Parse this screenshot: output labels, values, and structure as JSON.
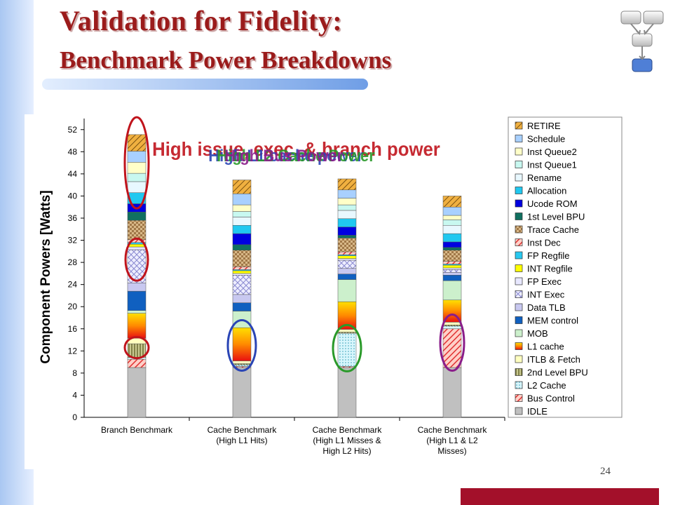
{
  "slide": {
    "title_line1": "Validation for Fidelity:",
    "title_line2": "Benchmark Power Breakdowns",
    "page_number": "24"
  },
  "annotations": {
    "overlap_labels": [
      "High issue, exec. & branch power",
      "High L1 cache power",
      "High L2 Cache Power",
      "High Bus Power"
    ],
    "colors": [
      "#c0141c",
      "#2a45b5",
      "#2a9a2a",
      "#8a1d8a"
    ]
  },
  "chart_data": {
    "type": "bar",
    "stacked": true,
    "ylabel": "Component Powers [Watts]",
    "xlabel": "",
    "ylim": [
      0,
      54
    ],
    "yticks": [
      0,
      4,
      8,
      12,
      16,
      20,
      24,
      28,
      32,
      36,
      40,
      44,
      48,
      52
    ],
    "grid": false,
    "legend_position": "right",
    "categories": [
      [
        "Branch Benchmark"
      ],
      [
        "Cache Benchmark",
        "(High L1 Hits)"
      ],
      [
        "Cache Benchmark",
        "(High L1 Misses &",
        "High L2 Hits)"
      ],
      [
        "Cache Benchmark",
        "(High L1 & L2",
        "Misses)"
      ]
    ],
    "series": [
      {
        "name": "IDLE",
        "color": "#c0c0c0",
        "pattern": "solid",
        "values": [
          9,
          9,
          9,
          9
        ]
      },
      {
        "name": "Bus Control",
        "color": "#f06060",
        "pattern": "diag",
        "values": [
          1.5,
          0.2,
          0.2,
          7
        ]
      },
      {
        "name": "L2 Cache",
        "color": "#c8f0f8",
        "pattern": "dots",
        "values": [
          0.3,
          0.3,
          6,
          0.5
        ]
      },
      {
        "name": "2nd Level BPU",
        "color": "#9c9c6a",
        "pattern": "vlines",
        "values": [
          2.5,
          0.2,
          0.2,
          0.2
        ]
      },
      {
        "name": "ITLB & Fetch",
        "color": "#ffffc0",
        "pattern": "solid",
        "values": [
          1,
          0.5,
          0.5,
          0.5
        ]
      },
      {
        "name": "L1 cache",
        "color": "#ff9a00",
        "pattern": "gradient",
        "values": [
          4.5,
          6,
          5,
          4
        ]
      },
      {
        "name": "MOB",
        "color": "#ccf0cc",
        "pattern": "solid",
        "values": [
          0.5,
          3,
          4,
          3.5
        ]
      },
      {
        "name": "MEM control",
        "color": "#1060c0",
        "pattern": "solid",
        "values": [
          3.5,
          1.5,
          1,
          1
        ]
      },
      {
        "name": "Data TLB",
        "color": "#c8c8f0",
        "pattern": "solid",
        "values": [
          1.5,
          1.5,
          1,
          0.5
        ]
      },
      {
        "name": "INT Exec",
        "color": "#e4e4f4",
        "pattern": "cross",
        "values": [
          6,
          3.5,
          1.5,
          0.5
        ]
      },
      {
        "name": "FP Exec",
        "color": "#e8e8ff",
        "pattern": "solid",
        "values": [
          0.5,
          0.3,
          0.3,
          0.3
        ]
      },
      {
        "name": "INT Regfile",
        "color": "#ffff00",
        "pattern": "solid",
        "values": [
          0.5,
          0.5,
          0.5,
          0.5
        ]
      },
      {
        "name": "FP Regfile",
        "color": "#28c8f0",
        "pattern": "solid",
        "values": [
          0.3,
          0.2,
          0.2,
          0.2
        ]
      },
      {
        "name": "Inst Dec",
        "color": "#ffffff",
        "pattern": "diag",
        "values": [
          0.5,
          0.5,
          0.5,
          0.5
        ]
      },
      {
        "name": "Trace Cache",
        "color": "#c8a070",
        "pattern": "weave",
        "values": [
          3.5,
          3,
          2.5,
          2
        ]
      },
      {
        "name": "1st Level BPU",
        "color": "#107060",
        "pattern": "solid",
        "values": [
          1.5,
          1,
          0.5,
          0.5
        ]
      },
      {
        "name": "Ucode ROM",
        "color": "#0000e0",
        "pattern": "solid",
        "values": [
          1.5,
          2,
          1.5,
          1
        ]
      },
      {
        "name": "Allocation",
        "color": "#20c8f0",
        "pattern": "solid",
        "values": [
          2,
          1.5,
          1.5,
          1.5
        ]
      },
      {
        "name": "Rename",
        "color": "#e8f8ff",
        "pattern": "solid",
        "values": [
          2,
          1.5,
          1.5,
          1.5
        ]
      },
      {
        "name": "Inst Queue1",
        "color": "#c8f8f0",
        "pattern": "solid",
        "values": [
          1.5,
          1,
          1,
          1
        ]
      },
      {
        "name": "Inst Queue2",
        "color": "#ffffc8",
        "pattern": "solid",
        "values": [
          2,
          1.2,
          1.2,
          0.8
        ]
      },
      {
        "name": "Schedule",
        "color": "#a8d0ff",
        "pattern": "solid",
        "values": [
          2,
          2,
          1.5,
          1.5
        ]
      },
      {
        "name": "RETIRE",
        "color": "#e8a030",
        "pattern": "diag-dark",
        "values": [
          3,
          2.5,
          2,
          2
        ]
      }
    ],
    "legend_order": [
      "RETIRE",
      "Schedule",
      "Inst Queue2",
      "Inst Queue1",
      "Rename",
      "Allocation",
      "Ucode ROM",
      "1st Level BPU",
      "Trace Cache",
      "Inst Dec",
      "FP Regfile",
      "INT Regfile",
      "FP Exec",
      "INT Exec",
      "Data TLB",
      "MEM control",
      "MOB",
      "L1 cache",
      "ITLB & Fetch",
      "2nd Level BPU",
      "L2 Cache",
      "Bus Control",
      "IDLE"
    ]
  }
}
